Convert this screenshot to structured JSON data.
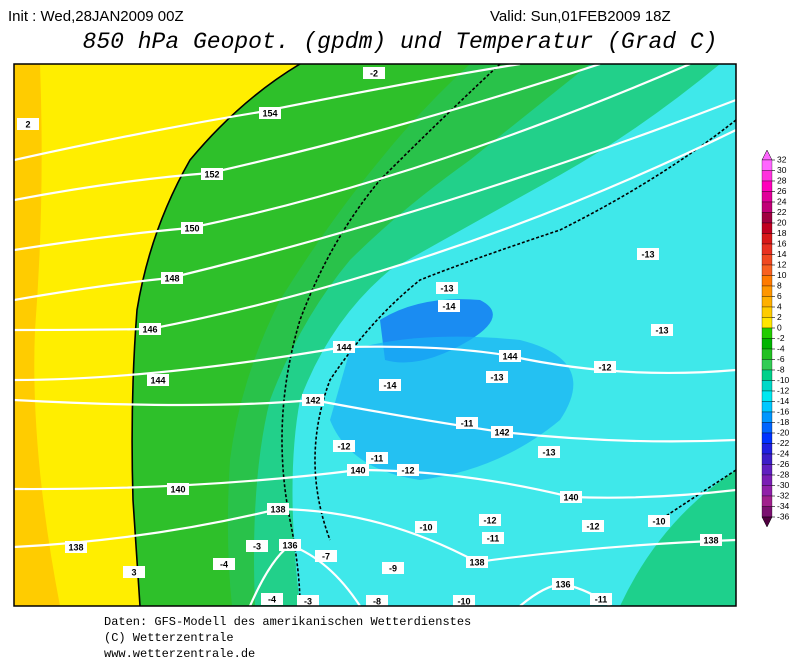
{
  "header": {
    "init": "Init : Wed,28JAN2009 00Z",
    "valid": "Valid: Sun,01FEB2009 18Z",
    "title": "850 hPa Geopot. (gpdm) und Temperatur (Grad C)"
  },
  "map": {
    "geopotential_labels": [
      154,
      152,
      150,
      148,
      146,
      144,
      144,
      144,
      142,
      142,
      140,
      140,
      140,
      138,
      138,
      138,
      138,
      136,
      136
    ],
    "temperature_labels": [
      -2,
      2,
      -13,
      -13,
      -14,
      -13,
      -14,
      -13,
      -12,
      -11,
      -12,
      -11,
      -12,
      -13,
      -12,
      -12,
      -10,
      -10,
      -11,
      -3,
      -4,
      -7,
      -9,
      3,
      -4,
      -3,
      -8,
      -10,
      -11
    ]
  },
  "colorbar": {
    "labels": [
      32,
      30,
      28,
      26,
      24,
      22,
      20,
      18,
      16,
      14,
      12,
      10,
      8,
      6,
      4,
      2,
      0,
      -2,
      -4,
      -6,
      -8,
      -10,
      -12,
      -14,
      -16,
      -18,
      -20,
      -22,
      -24,
      -26,
      -28,
      -30,
      -32,
      -34,
      -36
    ],
    "colors": [
      "#ff66ff",
      "#ff33dd",
      "#ff00bb",
      "#e00099",
      "#c00077",
      "#a00040",
      "#c00020",
      "#d81818",
      "#e83020",
      "#f04820",
      "#f86020",
      "#ff7a00",
      "#ff9600",
      "#ffb000",
      "#ffcc00",
      "#ffe600",
      "#22cc00",
      "#00b400",
      "#22c022",
      "#33cc55",
      "#00d08a",
      "#00d8c8",
      "#00e8f0",
      "#00c8ff",
      "#0096ff",
      "#0064ff",
      "#0032ff",
      "#2020e0",
      "#3c1ec8",
      "#6020c0",
      "#7a1eb4",
      "#9020a8",
      "#a0208c",
      "#7a1070",
      "#500040"
    ]
  },
  "footer": {
    "line1": "Daten: GFS-Modell des amerikanischen Wetterdienstes",
    "line2": "(C) Wetterzentrale",
    "line3": "www.wetterzentrale.de"
  }
}
